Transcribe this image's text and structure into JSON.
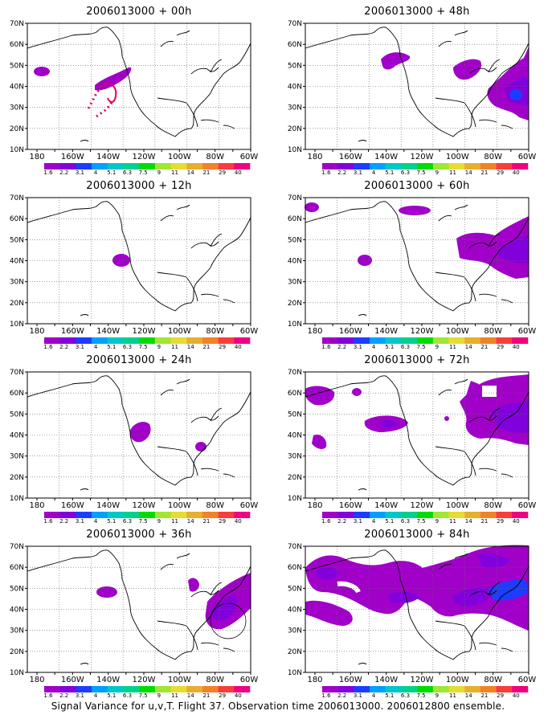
{
  "figure": {
    "caption": "Signal Variance for u,v,T. Flight 37. Observation time 2006013000. 2006012800 ensemble."
  },
  "colorbar": {
    "labels": [
      "1.6",
      "2.2",
      "3.1",
      "4",
      "5.1",
      "6.3",
      "7.5",
      "9",
      "11",
      "14",
      "21",
      "29",
      "40"
    ],
    "colors": [
      "#a000c8",
      "#8200dc",
      "#1e3cff",
      "#00a0ff",
      "#00c8c8",
      "#00d28c",
      "#00dc00",
      "#a0e632",
      "#e6dc32",
      "#e6af2d",
      "#f08228",
      "#fa3c3c",
      "#f00082"
    ]
  },
  "axes": {
    "lat_labels": [
      "70N",
      "60N",
      "50N",
      "40N",
      "30N",
      "20N",
      "10N"
    ],
    "lon_labels": [
      "180",
      "160W",
      "140W",
      "120W",
      "100W",
      "80W",
      "60W"
    ]
  },
  "panels": [
    {
      "title": "2006013000 + 00h"
    },
    {
      "title": "2006013000 + 48h"
    },
    {
      "title": "2006013000 + 12h"
    },
    {
      "title": "2006013000 + 60h"
    },
    {
      "title": "2006013000 + 24h"
    },
    {
      "title": "2006013000 + 72h"
    },
    {
      "title": "2006013000 + 36h"
    },
    {
      "title": "2006013000 + 84h"
    }
  ]
}
